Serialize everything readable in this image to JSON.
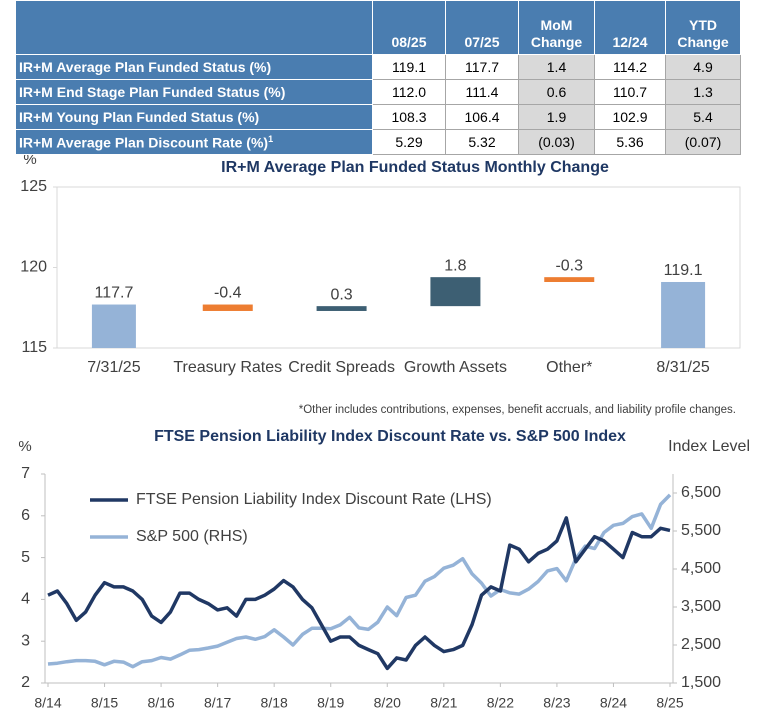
{
  "table": {
    "headers": [
      "08/25",
      "07/25",
      "MoM Change",
      "12/24",
      "YTD Change"
    ],
    "shaded_columns": [
      2,
      4
    ],
    "rows": [
      {
        "label": "IR+M Average Plan Funded Status (%)",
        "cells": [
          "119.1",
          "117.7",
          "1.4",
          "114.2",
          "4.9"
        ]
      },
      {
        "label": "IR+M End Stage Plan Funded Status (%)",
        "cells": [
          "112.0",
          "111.4",
          "0.6",
          "110.7",
          "1.3"
        ]
      },
      {
        "label": "IR+M Young Plan Funded Status (%)",
        "cells": [
          "108.3",
          "106.4",
          "1.9",
          "102.9",
          "5.4"
        ]
      },
      {
        "label": "IR+M Average Plan Discount Rate (%)",
        "note": "1",
        "cells": [
          "5.29",
          "5.32",
          "(0.03)",
          "5.36",
          "(0.07)"
        ]
      }
    ]
  },
  "chart_data": [
    {
      "type": "waterfall",
      "title": "IR+M Average Plan Funded Status Monthly Change",
      "y_label": "%",
      "categories": [
        "7/31/25",
        "Treasury Rates",
        "Credit Spreads",
        "Growth Assets",
        "Other*",
        "8/31/25"
      ],
      "values": [
        117.7,
        -0.4,
        0.3,
        1.8,
        -0.3,
        119.1
      ],
      "measure": [
        "absolute",
        "relative",
        "relative",
        "relative",
        "relative",
        "absolute"
      ],
      "colors": {
        "total": "#95b3d7",
        "increase": "#3d5f73",
        "decrease": "#ed7d31"
      },
      "ylim": [
        115,
        125
      ],
      "yticks": [
        115,
        120,
        125
      ],
      "footnote": "*Other includes contributions, expenses, benefit accruals, and liability profile changes."
    },
    {
      "type": "line",
      "title": "FTSE Pension Liability Index Discount Rate vs. S&P 500 Index",
      "y_label": "%",
      "y2_label": "Index Level",
      "legend": "upper left",
      "x": [
        "8/14",
        "10/14",
        "12/14",
        "2/15",
        "4/15",
        "6/15",
        "8/15",
        "10/15",
        "12/15",
        "2/16",
        "4/16",
        "6/16",
        "8/16",
        "10/16",
        "12/16",
        "2/17",
        "4/17",
        "6/17",
        "8/17",
        "10/17",
        "12/17",
        "2/18",
        "4/18",
        "6/18",
        "8/18",
        "10/18",
        "12/18",
        "2/19",
        "4/19",
        "6/19",
        "8/19",
        "10/19",
        "12/19",
        "2/20",
        "4/20",
        "6/20",
        "8/20",
        "10/20",
        "12/20",
        "2/21",
        "4/21",
        "6/21",
        "8/21",
        "10/21",
        "12/21",
        "2/22",
        "4/22",
        "6/22",
        "8/22",
        "10/22",
        "12/22",
        "2/23",
        "4/23",
        "6/23",
        "8/23",
        "10/23",
        "12/23",
        "2/24",
        "4/24",
        "6/24",
        "8/24",
        "10/24",
        "12/24",
        "2/25",
        "4/25",
        "6/25",
        "8/25"
      ],
      "xlim": [
        "8/14",
        "8/25"
      ],
      "xticks": [
        "8/14",
        "8/15",
        "8/16",
        "8/17",
        "8/18",
        "8/19",
        "8/20",
        "8/21",
        "8/22",
        "8/23",
        "8/24",
        "8/25"
      ],
      "ylim": [
        2,
        7
      ],
      "yticks": [
        2,
        3,
        4,
        5,
        6,
        7
      ],
      "y2lim": [
        1500,
        7000
      ],
      "y2ticks": [
        {
          "value": 1500,
          "label": "1,500"
        },
        {
          "value": 2500,
          "label": "2,500"
        },
        {
          "value": 3500,
          "label": "3,500"
        },
        {
          "value": 4500,
          "label": "4,500"
        },
        {
          "value": 5500,
          "label": "5,500"
        },
        {
          "value": 6500,
          "label": "6,500"
        }
      ],
      "series": [
        {
          "name": "FTSE Pension Liability Index Discount Rate (LHS)",
          "color": "#203864",
          "axis": "y",
          "values": [
            4.1,
            4.2,
            3.9,
            3.5,
            3.7,
            4.1,
            4.4,
            4.3,
            4.3,
            4.2,
            4.0,
            3.6,
            3.45,
            3.7,
            4.15,
            4.15,
            4.0,
            3.9,
            3.75,
            3.8,
            3.6,
            4.0,
            4.0,
            4.1,
            4.25,
            4.45,
            4.3,
            4.0,
            3.8,
            3.4,
            3.0,
            3.1,
            3.1,
            2.9,
            2.8,
            2.7,
            2.35,
            2.6,
            2.55,
            2.9,
            3.1,
            2.9,
            2.75,
            2.8,
            2.9,
            3.4,
            4.1,
            4.3,
            4.2,
            5.3,
            5.2,
            4.9,
            5.1,
            5.2,
            5.4,
            5.95,
            4.9,
            5.2,
            5.5,
            5.4,
            5.2,
            5.0,
            5.6,
            5.5,
            5.5,
            5.7,
            5.65
          ]
        },
        {
          "name": "S&P 500 (RHS)",
          "color": "#95b3d7",
          "axis": "y2",
          "values": [
            2000,
            2020,
            2060,
            2090,
            2090,
            2070,
            1980,
            2070,
            2050,
            1930,
            2060,
            2090,
            2170,
            2130,
            2240,
            2360,
            2380,
            2420,
            2470,
            2570,
            2670,
            2710,
            2650,
            2720,
            2900,
            2710,
            2500,
            2780,
            2940,
            2940,
            2930,
            3030,
            3230,
            2950,
            2910,
            3100,
            3500,
            3270,
            3750,
            3810,
            4180,
            4300,
            4520,
            4600,
            4770,
            4370,
            4130,
            3790,
            3960,
            3870,
            3840,
            3970,
            4170,
            4450,
            4510,
            4190,
            4770,
            5100,
            5040,
            5460,
            5650,
            5700,
            5880,
            5950,
            5570,
            6200,
            6450
          ]
        }
      ]
    }
  ]
}
